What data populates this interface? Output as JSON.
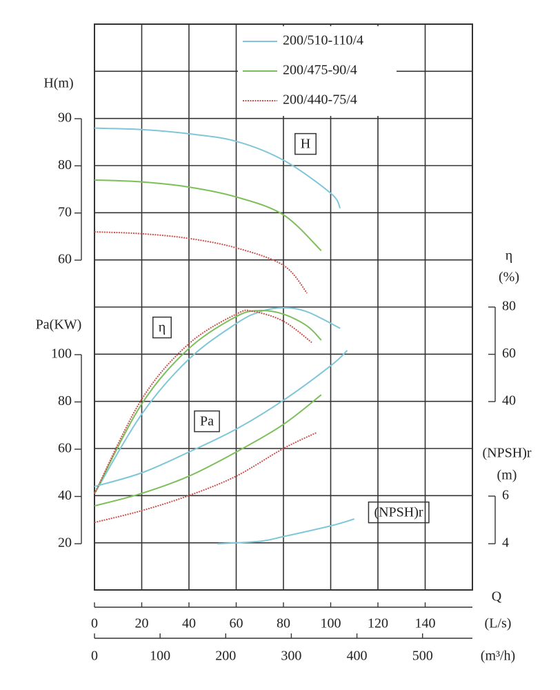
{
  "chart_data": [
    {
      "type": "line",
      "annotation": "H",
      "y_label": "H(m)",
      "x_label": "Q",
      "x_unit": "(L/s)",
      "x2_unit": "(m³/h)",
      "xlim": [
        0,
        160
      ],
      "xticks": [
        0,
        20,
        40,
        60,
        80,
        100,
        120,
        140
      ],
      "x2lim": [
        0,
        576
      ],
      "x2ticks": [
        0,
        100,
        200,
        300,
        400,
        500
      ],
      "ylim": [
        60,
        90
      ],
      "yticks": [
        60,
        70,
        80,
        90
      ],
      "grid": true,
      "series": [
        {
          "name": "200/510-110/4",
          "color": "#7ec6d8",
          "x": [
            0,
            20,
            40,
            60,
            80,
            100,
            104
          ],
          "values": [
            88,
            87.7,
            86.8,
            85.2,
            81.2,
            74.2,
            71
          ]
        },
        {
          "name": "200/475-90/4",
          "color": "#7cbf5a",
          "x": [
            0,
            20,
            40,
            60,
            80,
            96
          ],
          "values": [
            77,
            76.6,
            75.5,
            73.4,
            69.6,
            62
          ]
        },
        {
          "name": "200/440-75/4",
          "color": "#c9504a",
          "line_style": "dotted",
          "x": [
            0,
            20,
            40,
            60,
            80,
            90
          ],
          "values": [
            66,
            65.6,
            64.6,
            62.6,
            58.9,
            53
          ]
        }
      ]
    },
    {
      "type": "line",
      "annotation": "η",
      "y_label": "η",
      "y_unit": "(%)",
      "ylim": [
        40,
        80
      ],
      "yticks": [
        40,
        60,
        80
      ],
      "series": [
        {
          "color": "#7ec6d8",
          "x": [
            0,
            20,
            40,
            60,
            70,
            80,
            90,
            104
          ],
          "values": [
            1,
            34.7,
            58,
            73,
            78,
            79.7,
            78,
            71
          ]
        },
        {
          "color": "#7cbf5a",
          "x": [
            0,
            20,
            40,
            60,
            70,
            80,
            90,
            96
          ],
          "values": [
            1,
            39,
            62.5,
            76,
            78.5,
            77,
            72,
            66
          ]
        },
        {
          "color": "#c9504a",
          "line_style": "dotted",
          "x": [
            0,
            20,
            40,
            60,
            67,
            80,
            92
          ],
          "values": [
            1,
            41,
            64.5,
            77,
            78.2,
            74,
            65
          ]
        }
      ]
    },
    {
      "type": "line",
      "annotation": "Pa",
      "y_label": "Pa(KW)",
      "ylim": [
        20,
        100
      ],
      "yticks": [
        20,
        40,
        60,
        80,
        100
      ],
      "series": [
        {
          "color": "#7ec6d8",
          "x": [
            0,
            20,
            40,
            60,
            80,
            100,
            107
          ],
          "values": [
            44.2,
            50,
            58.8,
            68.5,
            80.7,
            95.3,
            101.8
          ]
        },
        {
          "color": "#7cbf5a",
          "x": [
            0,
            20,
            40,
            60,
            80,
            96
          ],
          "values": [
            36,
            41.3,
            48.6,
            58.8,
            70.5,
            83
          ]
        },
        {
          "color": "#c9504a",
          "line_style": "dotted",
          "x": [
            0,
            20,
            40,
            60,
            80,
            94
          ],
          "values": [
            29,
            34,
            40.4,
            48.6,
            60.3,
            67
          ]
        }
      ]
    },
    {
      "type": "line",
      "annotation": "(NPSH)r",
      "y_label": "(NPSH)r",
      "y_unit": "(m)",
      "ylim": [
        4,
        6
      ],
      "yticks": [
        4,
        6
      ],
      "series": [
        {
          "color": "#7ec6d8",
          "x": [
            52,
            70,
            80,
            100,
            110
          ],
          "values": [
            4,
            4.1,
            4.3,
            4.75,
            5.04
          ]
        }
      ]
    }
  ]
}
